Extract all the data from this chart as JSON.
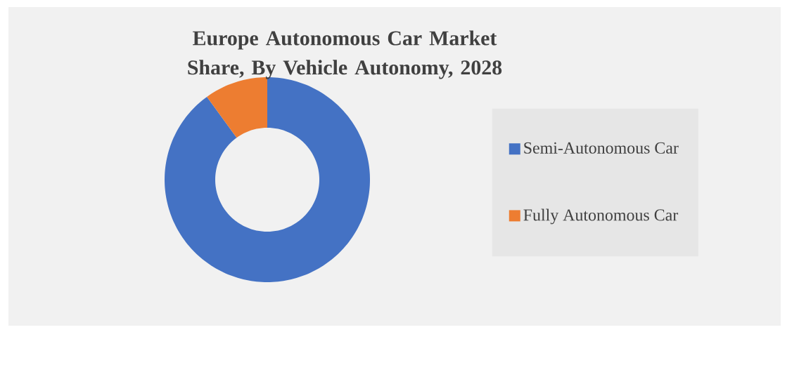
{
  "chart_data": {
    "type": "donut",
    "title": "Europe Autonomous Car Market Share, By Vehicle Autonomy, 2028",
    "categories": [
      "Semi-Autonomous Car",
      "Fully Autonomous Car"
    ],
    "values": [
      90,
      10
    ],
    "colors": [
      "#4472c4",
      "#ed7d31"
    ],
    "legend": "right"
  }
}
